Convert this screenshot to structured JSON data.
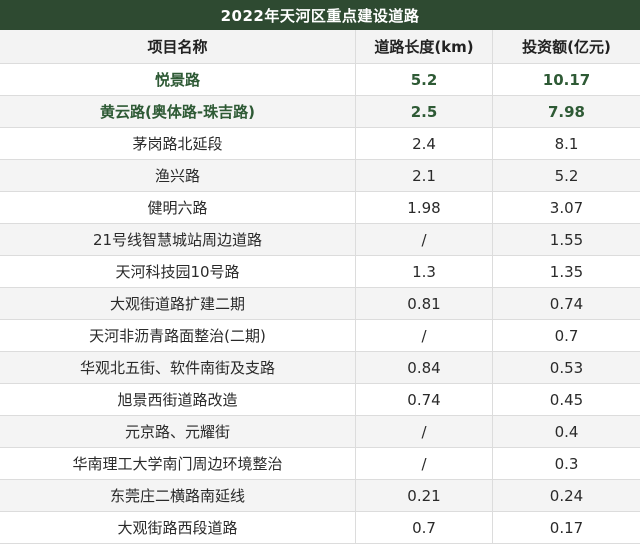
{
  "title": "2022年天河区重点建设道路",
  "colors": {
    "title_bg": "#2e4a31",
    "highlight_text": "#2e5a35"
  },
  "header": {
    "name": "项目名称",
    "length": "道路长度(km)",
    "investment": "投资额(亿元)"
  },
  "rows": [
    {
      "name": "悦景路",
      "length": "5.2",
      "investment": "10.17",
      "highlight": true
    },
    {
      "name": "黄云路(奥体路-珠吉路)",
      "length": "2.5",
      "investment": "7.98",
      "highlight": true
    },
    {
      "name": "茅岗路北延段",
      "length": "2.4",
      "investment": "8.1",
      "highlight": false
    },
    {
      "name": "渔兴路",
      "length": "2.1",
      "investment": "5.2",
      "highlight": false
    },
    {
      "name": "健明六路",
      "length": "1.98",
      "investment": "3.07",
      "highlight": false
    },
    {
      "name": "21号线智慧城站周边道路",
      "length": "/",
      "investment": "1.55",
      "highlight": false
    },
    {
      "name": "天河科技园10号路",
      "length": "1.3",
      "investment": "1.35",
      "highlight": false
    },
    {
      "name": "大观街道路扩建二期",
      "length": "0.81",
      "investment": "0.74",
      "highlight": false
    },
    {
      "name": "天河非沥青路面整治(二期)",
      "length": "/",
      "investment": "0.7",
      "highlight": false
    },
    {
      "name": "华观北五街、软件南街及支路",
      "length": "0.84",
      "investment": "0.53",
      "highlight": false
    },
    {
      "name": "旭景西街道路改造",
      "length": "0.74",
      "investment": "0.45",
      "highlight": false
    },
    {
      "name": "元京路、元耀街",
      "length": "/",
      "investment": "0.4",
      "highlight": false
    },
    {
      "name": "华南理工大学南门周边环境整治",
      "length": "/",
      "investment": "0.3",
      "highlight": false
    },
    {
      "name": "东莞庄二横路南延线",
      "length": "0.21",
      "investment": "0.24",
      "highlight": false
    },
    {
      "name": "大观街路西段道路",
      "length": "0.7",
      "investment": "0.17",
      "highlight": false
    }
  ]
}
